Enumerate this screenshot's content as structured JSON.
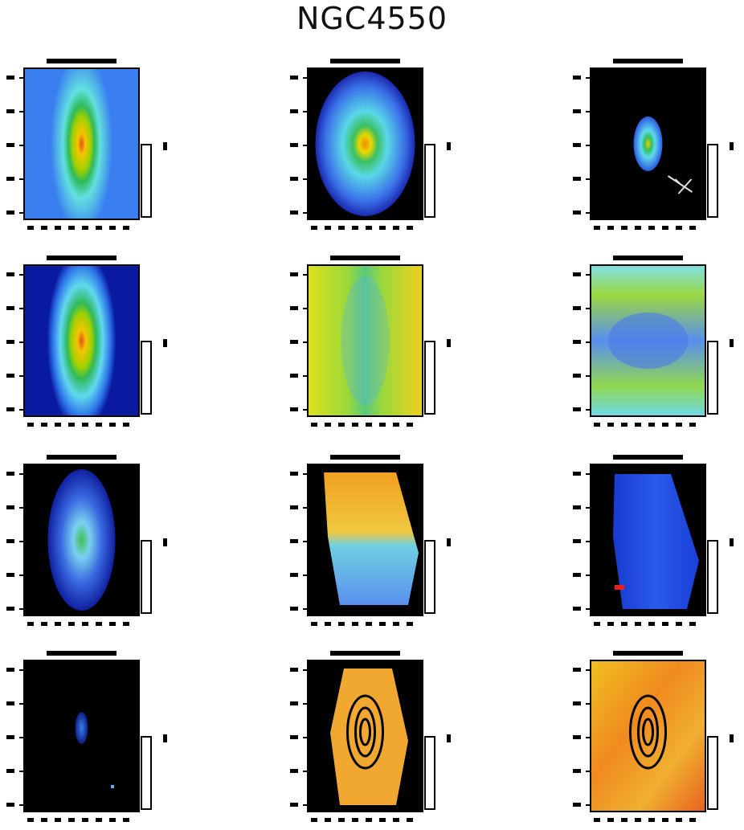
{
  "header": {
    "title": "NGC4550"
  }
}
